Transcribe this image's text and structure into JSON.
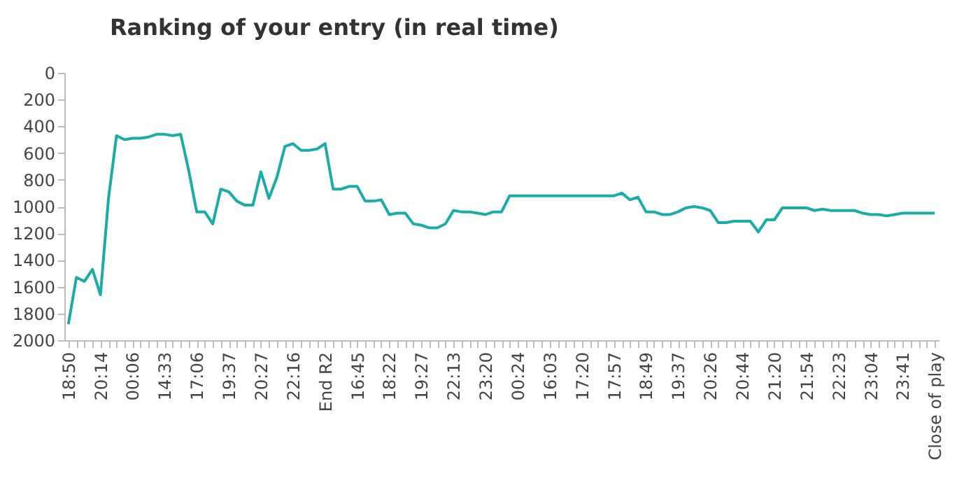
{
  "chart_data": {
    "type": "line",
    "title": "Ranking of your entry (in real time)",
    "categories": [
      "18:50",
      null,
      null,
      null,
      "20:14",
      null,
      null,
      null,
      "00:06",
      null,
      null,
      null,
      "14:33",
      null,
      null,
      null,
      "17:06",
      null,
      null,
      null,
      "19:37",
      null,
      null,
      null,
      "20:27",
      null,
      null,
      null,
      "22:16",
      null,
      null,
      null,
      "End R2",
      null,
      null,
      null,
      "16:45",
      null,
      null,
      null,
      "18:22",
      null,
      null,
      null,
      "19:27",
      null,
      null,
      null,
      "22:13",
      null,
      null,
      null,
      "23:20",
      null,
      null,
      null,
      "00:24",
      null,
      null,
      null,
      "16:03",
      null,
      null,
      null,
      "17:20",
      null,
      null,
      null,
      "17:57",
      null,
      null,
      null,
      "18:49",
      null,
      null,
      null,
      "19:37",
      null,
      null,
      null,
      "20:26",
      null,
      null,
      null,
      "20:44",
      null,
      null,
      null,
      "21:20",
      null,
      null,
      null,
      "21:54",
      null,
      null,
      null,
      "22:23",
      null,
      null,
      null,
      "23:04",
      null,
      null,
      null,
      "23:41",
      null,
      null,
      null,
      "Close of play"
    ],
    "series": [
      {
        "color": "#1aada8",
        "values": [
          1880,
          1530,
          1560,
          1470,
          1660,
          940,
          470,
          500,
          490,
          490,
          480,
          460,
          460,
          470,
          460,
          730,
          1040,
          1040,
          1130,
          870,
          890,
          960,
          990,
          990,
          740,
          940,
          780,
          550,
          530,
          580,
          580,
          570,
          530,
          870,
          870,
          850,
          850,
          960,
          960,
          950,
          1060,
          1050,
          1050,
          1130,
          1140,
          1160,
          1160,
          1130,
          1030,
          1040,
          1040,
          1050,
          1060,
          1040,
          1040,
          920,
          920,
          920,
          920,
          920,
          920,
          920,
          920,
          920,
          920,
          920,
          920,
          920,
          920,
          900,
          950,
          930,
          1040,
          1040,
          1060,
          1060,
          1040,
          1010,
          1000,
          1010,
          1030,
          1120,
          1120,
          1110,
          1110,
          1110,
          1190,
          1100,
          1100,
          1010,
          1010,
          1010,
          1010,
          1030,
          1020,
          1030,
          1030,
          1030,
          1030,
          1050,
          1060,
          1060,
          1070,
          1060,
          1050,
          1050,
          1050,
          1050,
          1050
        ]
      }
    ],
    "ylim": [
      2000,
      0
    ],
    "yticks": [
      0,
      200,
      400,
      600,
      800,
      1000,
      1200,
      1400,
      1600,
      1800,
      2000
    ],
    "grid": false,
    "legend": false,
    "line_style": "solid",
    "marker": "none"
  }
}
